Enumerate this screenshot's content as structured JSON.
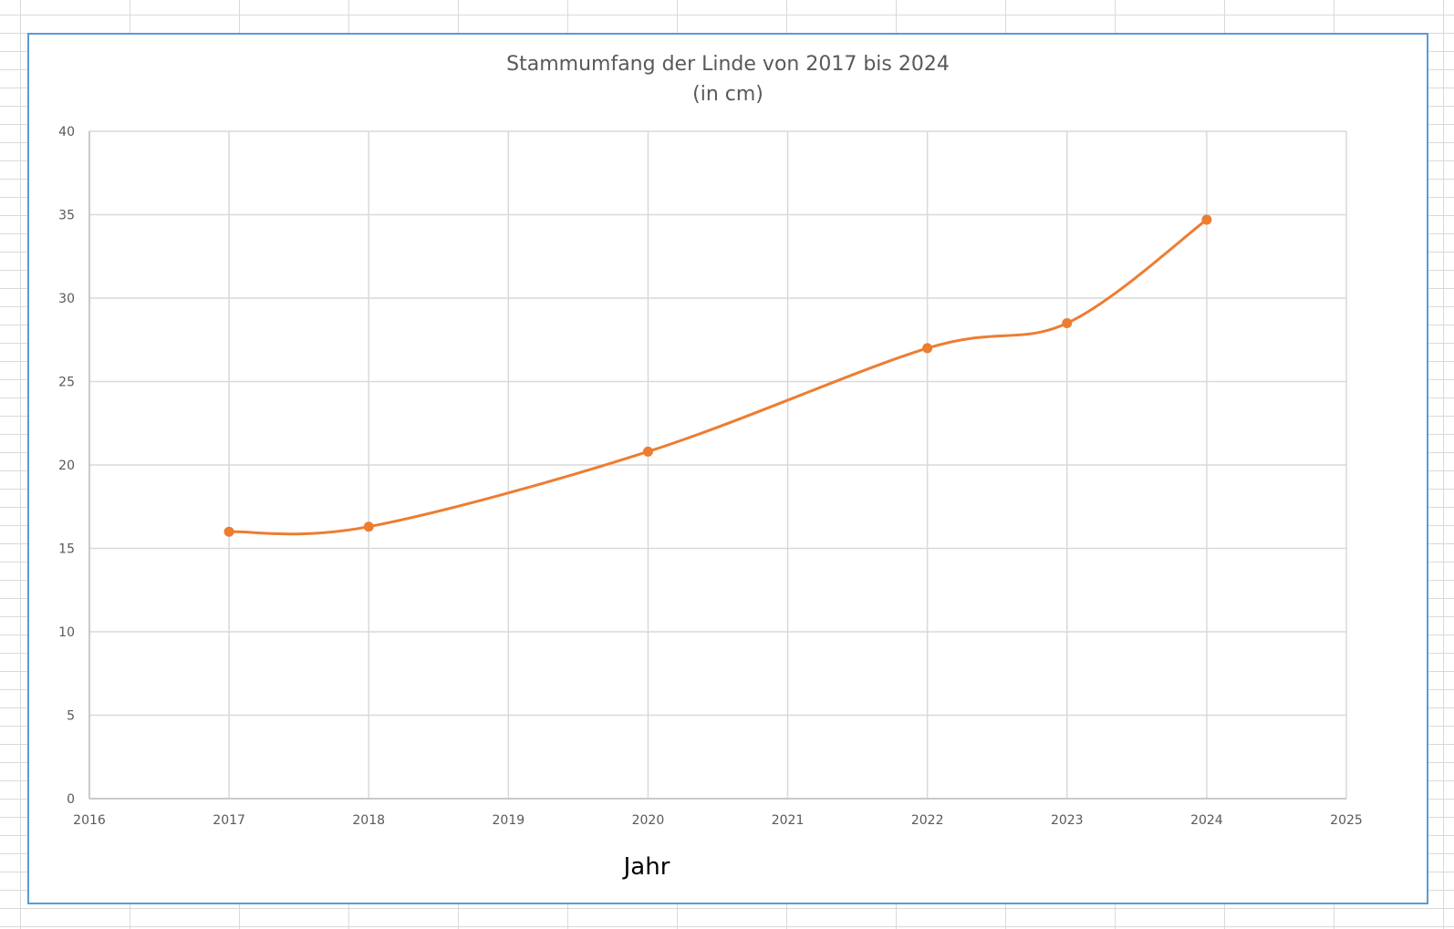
{
  "chart_data": {
    "type": "scatter",
    "title": "Stammumfang der Linde von 2017 bis 2024",
    "subtitle": "(in cm)",
    "xlabel": "Jahr",
    "ylabel": "",
    "xlim": [
      2016,
      2025
    ],
    "ylim": [
      0,
      40
    ],
    "x_ticks": [
      2016,
      2017,
      2018,
      2019,
      2020,
      2021,
      2022,
      2023,
      2024,
      2025
    ],
    "y_ticks": [
      0,
      5,
      10,
      15,
      20,
      25,
      30,
      35,
      40
    ],
    "grid": true,
    "smooth_line": true,
    "markers": true,
    "series": [
      {
        "x": [
          2017,
          2018,
          2020,
          2022,
          2023,
          2024
        ],
        "y": [
          16.0,
          16.3,
          20.8,
          27.0,
          28.5,
          34.7
        ],
        "color": "#ed7d31"
      }
    ]
  },
  "colors": {
    "frame_border": "#5b9bd5",
    "gridline": "#d9d9d9",
    "axis_text": "#595959"
  }
}
